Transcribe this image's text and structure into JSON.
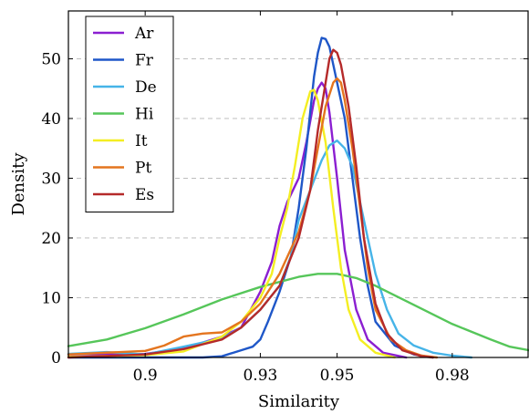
{
  "chart_data": {
    "type": "line",
    "title": "",
    "xlabel": "Similarity",
    "ylabel": "Density",
    "xlim": [
      0.88,
      1.0
    ],
    "ylim": [
      0,
      58
    ],
    "xticks": [
      0.9,
      0.93,
      0.95,
      0.98
    ],
    "xtick_labels": [
      "0.9",
      "0.93",
      "0.95",
      "0.98"
    ],
    "yticks": [
      0,
      10,
      20,
      30,
      40,
      50
    ],
    "grid": "horizontal dashed",
    "legend_position": "top-left",
    "series": [
      {
        "name": "Ar",
        "color": "#8b1fd1",
        "points": [
          [
            0.88,
            0.5
          ],
          [
            0.9,
            0.6
          ],
          [
            0.91,
            1.5
          ],
          [
            0.92,
            3.5
          ],
          [
            0.925,
            5
          ],
          [
            0.93,
            11
          ],
          [
            0.933,
            16
          ],
          [
            0.935,
            22
          ],
          [
            0.937,
            26
          ],
          [
            0.94,
            30
          ],
          [
            0.942,
            36
          ],
          [
            0.944,
            43
          ],
          [
            0.945,
            45
          ],
          [
            0.946,
            46
          ],
          [
            0.947,
            45
          ],
          [
            0.948,
            41
          ],
          [
            0.95,
            30
          ],
          [
            0.952,
            18
          ],
          [
            0.955,
            8
          ],
          [
            0.958,
            3
          ],
          [
            0.962,
            0.8
          ],
          [
            0.968,
            0
          ]
        ]
      },
      {
        "name": "Fr",
        "color": "#1f57c8",
        "points": [
          [
            0.88,
            0
          ],
          [
            0.915,
            0
          ],
          [
            0.92,
            0.2
          ],
          [
            0.925,
            1.2
          ],
          [
            0.928,
            1.8
          ],
          [
            0.93,
            3
          ],
          [
            0.932,
            6
          ],
          [
            0.935,
            11
          ],
          [
            0.938,
            17
          ],
          [
            0.94,
            25
          ],
          [
            0.942,
            35
          ],
          [
            0.944,
            47
          ],
          [
            0.945,
            51
          ],
          [
            0.946,
            53.5
          ],
          [
            0.947,
            53.3
          ],
          [
            0.948,
            52
          ],
          [
            0.95,
            46
          ],
          [
            0.952,
            40
          ],
          [
            0.954,
            30
          ],
          [
            0.956,
            20
          ],
          [
            0.958,
            12
          ],
          [
            0.96,
            6
          ],
          [
            0.965,
            2
          ],
          [
            0.97,
            0.5
          ],
          [
            0.975,
            0
          ]
        ]
      },
      {
        "name": "De",
        "color": "#46b4e8",
        "points": [
          [
            0.88,
            0.6
          ],
          [
            0.89,
            0.9
          ],
          [
            0.9,
            0.5
          ],
          [
            0.91,
            1.8
          ],
          [
            0.92,
            3.2
          ],
          [
            0.925,
            5
          ],
          [
            0.93,
            8
          ],
          [
            0.935,
            12
          ],
          [
            0.938,
            17
          ],
          [
            0.94,
            23
          ],
          [
            0.943,
            28
          ],
          [
            0.946,
            33
          ],
          [
            0.948,
            35.5
          ],
          [
            0.95,
            36.3
          ],
          [
            0.952,
            35
          ],
          [
            0.954,
            32
          ],
          [
            0.956,
            26
          ],
          [
            0.958,
            20
          ],
          [
            0.96,
            14
          ],
          [
            0.963,
            8
          ],
          [
            0.966,
            4
          ],
          [
            0.97,
            2
          ],
          [
            0.975,
            0.8
          ],
          [
            0.98,
            0.3
          ],
          [
            0.985,
            0
          ]
        ]
      },
      {
        "name": "Hi",
        "color": "#56c65a",
        "points": [
          [
            0.88,
            1.9
          ],
          [
            0.89,
            3
          ],
          [
            0.9,
            4.9
          ],
          [
            0.91,
            7.2
          ],
          [
            0.92,
            9.7
          ],
          [
            0.93,
            11.8
          ],
          [
            0.94,
            13.5
          ],
          [
            0.945,
            14
          ],
          [
            0.95,
            14
          ],
          [
            0.955,
            13.3
          ],
          [
            0.96,
            12
          ],
          [
            0.97,
            8.8
          ],
          [
            0.98,
            5.6
          ],
          [
            0.99,
            3
          ],
          [
            0.995,
            1.8
          ],
          [
            1.0,
            1.2
          ]
        ]
      },
      {
        "name": "It",
        "color": "#f4ee22",
        "points": [
          [
            0.88,
            0.1
          ],
          [
            0.9,
            0.4
          ],
          [
            0.91,
            1
          ],
          [
            0.92,
            3.5
          ],
          [
            0.925,
            6
          ],
          [
            0.93,
            10
          ],
          [
            0.933,
            14
          ],
          [
            0.935,
            20
          ],
          [
            0.937,
            25
          ],
          [
            0.939,
            32
          ],
          [
            0.941,
            40
          ],
          [
            0.943,
            44.5
          ],
          [
            0.944,
            44.8
          ],
          [
            0.945,
            43
          ],
          [
            0.947,
            36
          ],
          [
            0.949,
            25
          ],
          [
            0.951,
            15
          ],
          [
            0.953,
            8
          ],
          [
            0.956,
            3
          ],
          [
            0.96,
            0.8
          ],
          [
            0.965,
            0
          ]
        ]
      },
      {
        "name": "Pt",
        "color": "#e4751f",
        "points": [
          [
            0.88,
            0.5
          ],
          [
            0.9,
            1.1
          ],
          [
            0.905,
            2
          ],
          [
            0.91,
            3.5
          ],
          [
            0.915,
            4
          ],
          [
            0.92,
            4.2
          ],
          [
            0.925,
            6
          ],
          [
            0.93,
            9
          ],
          [
            0.935,
            14
          ],
          [
            0.94,
            21
          ],
          [
            0.943,
            28
          ],
          [
            0.945,
            35
          ],
          [
            0.947,
            42
          ],
          [
            0.949,
            46
          ],
          [
            0.95,
            46.7
          ],
          [
            0.951,
            46
          ],
          [
            0.952,
            43
          ],
          [
            0.954,
            35
          ],
          [
            0.956,
            25
          ],
          [
            0.958,
            15
          ],
          [
            0.96,
            8
          ],
          [
            0.964,
            3
          ],
          [
            0.968,
            1.2
          ],
          [
            0.972,
            0.3
          ],
          [
            0.976,
            0
          ]
        ]
      },
      {
        "name": "Es",
        "color": "#b52a2a",
        "points": [
          [
            0.88,
            0
          ],
          [
            0.9,
            0.5
          ],
          [
            0.91,
            1.4
          ],
          [
            0.92,
            3
          ],
          [
            0.925,
            5
          ],
          [
            0.93,
            8
          ],
          [
            0.935,
            12
          ],
          [
            0.94,
            20
          ],
          [
            0.943,
            28
          ],
          [
            0.945,
            38
          ],
          [
            0.947,
            46
          ],
          [
            0.948,
            50
          ],
          [
            0.949,
            51.5
          ],
          [
            0.95,
            51
          ],
          [
            0.951,
            49
          ],
          [
            0.953,
            42
          ],
          [
            0.955,
            32
          ],
          [
            0.957,
            20
          ],
          [
            0.96,
            9
          ],
          [
            0.963,
            4
          ],
          [
            0.967,
            1.2
          ],
          [
            0.972,
            0.2
          ],
          [
            0.975,
            0
          ]
        ]
      }
    ]
  }
}
